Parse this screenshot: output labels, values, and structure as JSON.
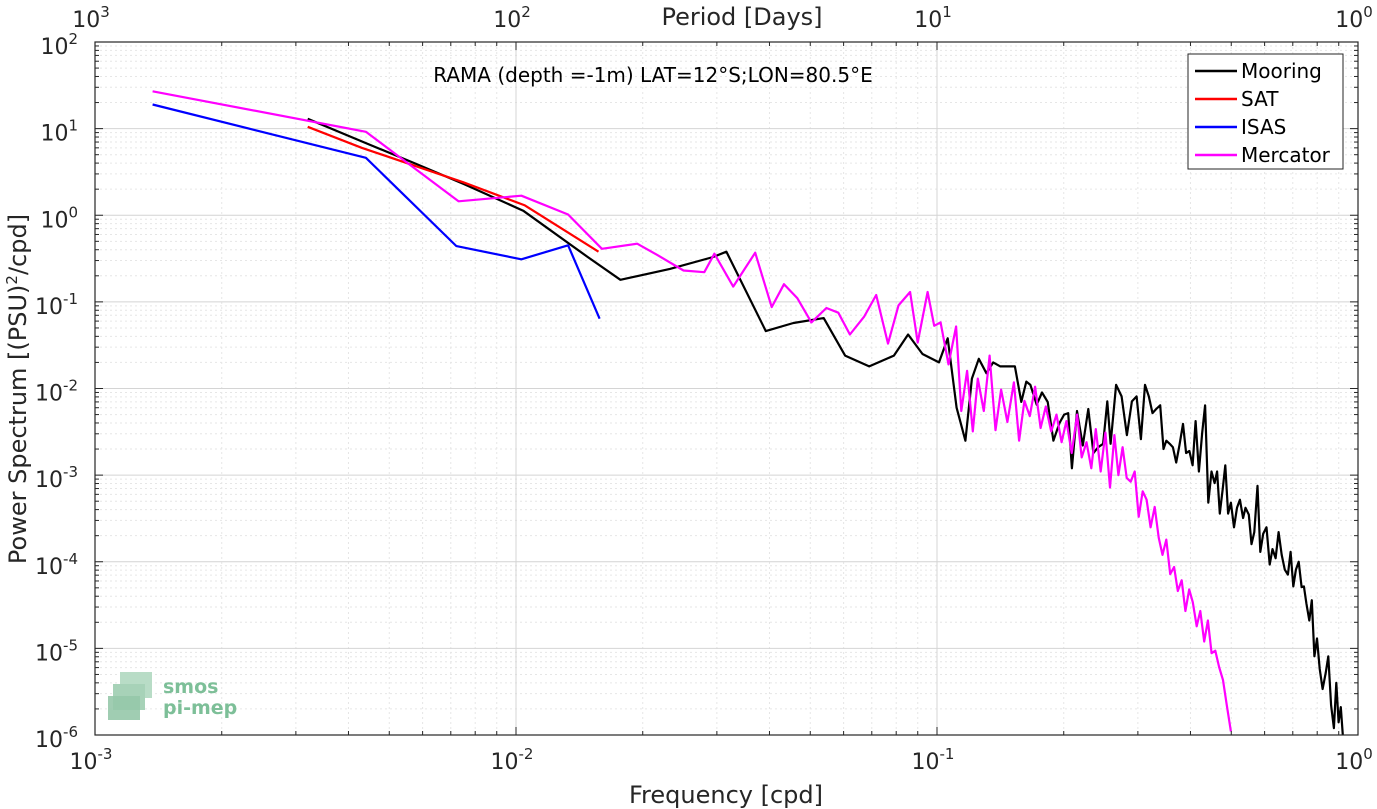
{
  "chart_data": {
    "type": "line",
    "title": "RAMA (depth =-1m) LAT=12°S;LON=80.5°E",
    "xlabel": "Frequency [cpd]",
    "ylabel": "Power Spectrum [(PSU)²/cpd]",
    "xlabel_top": "Period [Days]",
    "xscale": "log",
    "yscale": "log",
    "xlim": [
      0.001,
      1
    ],
    "ylim": [
      1e-06,
      100
    ],
    "grid": true,
    "legend_position": "top-right",
    "x_ticks": [
      {
        "value": 0.001,
        "base": "10",
        "exp": "-3"
      },
      {
        "value": 0.01,
        "base": "10",
        "exp": "-2"
      },
      {
        "value": 0.1,
        "base": "10",
        "exp": "-1"
      },
      {
        "value": 1,
        "base": "10",
        "exp": "0"
      }
    ],
    "y_ticks": [
      {
        "value": 1e-06,
        "base": "10",
        "exp": "-6"
      },
      {
        "value": 1e-05,
        "base": "10",
        "exp": "-5"
      },
      {
        "value": 0.0001,
        "base": "10",
        "exp": "-4"
      },
      {
        "value": 0.001,
        "base": "10",
        "exp": "-3"
      },
      {
        "value": 0.01,
        "base": "10",
        "exp": "-2"
      },
      {
        "value": 0.1,
        "base": "10",
        "exp": "-1"
      },
      {
        "value": 1,
        "base": "10",
        "exp": "0"
      },
      {
        "value": 10,
        "base": "10",
        "exp": "1"
      },
      {
        "value": 100,
        "base": "10",
        "exp": "2"
      }
    ],
    "top_ticks": [
      {
        "value": 0.001,
        "base": "10",
        "exp": "3"
      },
      {
        "value": 0.01,
        "base": "10",
        "exp": "2"
      },
      {
        "value": 0.1,
        "base": "10",
        "exp": "1"
      },
      {
        "value": 1,
        "base": "10",
        "exp": "0"
      }
    ],
    "series": [
      {
        "name": "Mooring",
        "color": "#000000",
        "x": [
          0.0032,
          0.0044,
          0.0058,
          0.0075,
          0.0104,
          0.0148,
          0.0177,
          0.0232,
          0.0294,
          0.0316,
          0.0392,
          0.0456,
          0.0538,
          0.0605,
          0.069,
          0.079,
          0.0854,
          0.0924,
          0.1011,
          0.106,
          0.1113,
          0.1168,
          0.121,
          0.1257,
          0.131,
          0.136,
          0.1414,
          0.147,
          0.1531,
          0.1586,
          0.163,
          0.1667,
          0.1725,
          0.1776,
          0.1832,
          0.189,
          0.1954,
          0.2004,
          0.205,
          0.2091,
          0.215,
          0.222,
          0.2287,
          0.2352,
          0.2415,
          0.2481,
          0.2538,
          0.2584,
          0.2663,
          0.2744,
          0.2826,
          0.2903,
          0.298,
          0.305,
          0.312,
          0.3185,
          0.325,
          0.3317,
          0.339,
          0.3451,
          0.3505,
          0.3571,
          0.3634,
          0.3699,
          0.3766,
          0.384,
          0.3905,
          0.3977,
          0.4047,
          0.4115,
          0.4188,
          0.4265,
          0.4334,
          0.441,
          0.4488,
          0.4564,
          0.4628,
          0.4696,
          0.477,
          0.484,
          0.4915,
          0.4989,
          0.5074,
          0.516,
          0.5243,
          0.5333,
          0.5405,
          0.5503,
          0.5585,
          0.5671,
          0.577,
          0.586,
          0.5954,
          0.6061,
          0.6169,
          0.6265,
          0.6371,
          0.6478,
          0.6589,
          0.6702,
          0.6815,
          0.6918,
          0.7021,
          0.712,
          0.7229,
          0.7344,
          0.744,
          0.7542,
          0.766,
          0.7767,
          0.7877,
          0.799,
          0.811,
          0.8241,
          0.838,
          0.8501,
          0.863,
          0.8764,
          0.8881,
          0.8995,
          0.91,
          0.92
        ],
        "y": [
          13.0,
          6.8,
          3.9,
          2.3,
          1.13,
          0.33,
          0.18,
          0.24,
          0.33,
          0.38,
          0.046,
          0.057,
          0.065,
          0.024,
          0.018,
          0.024,
          0.042,
          0.025,
          0.02,
          0.038,
          0.006,
          0.0025,
          0.013,
          0.022,
          0.015,
          0.02,
          0.018,
          0.018,
          0.018,
          0.007,
          0.012,
          0.011,
          0.0065,
          0.009,
          0.007,
          0.0025,
          0.004,
          0.005,
          0.0052,
          0.0012,
          0.0055,
          0.0022,
          0.0058,
          0.0018,
          0.0021,
          0.0023,
          0.0071,
          0.0023,
          0.011,
          0.0081,
          0.0029,
          0.0071,
          0.0081,
          0.0026,
          0.011,
          0.0081,
          0.0052,
          0.0058,
          0.0064,
          0.002,
          0.0025,
          0.0023,
          0.0021,
          0.0014,
          0.0022,
          0.0039,
          0.0018,
          0.0019,
          0.0013,
          0.0042,
          0.0011,
          0.0031,
          0.0064,
          0.00048,
          0.0011,
          0.00081,
          0.0011,
          0.00036,
          0.00069,
          0.0013,
          0.00036,
          0.00048,
          0.00025,
          0.00042,
          0.00052,
          0.00032,
          0.00042,
          0.00035,
          0.00016,
          0.00022,
          0.00075,
          0.00013,
          0.00021,
          0.00025,
          9.3e-05,
          0.00014,
          0.00011,
          0.00022,
          0.00012,
          8.1e-05,
          7.1e-05,
          0.00013,
          5.2e-05,
          8.1e-05,
          0.0001,
          5.1e-05,
          5.2e-05,
          3.3e-05,
          2.1e-05,
          3.6e-05,
          8.1e-06,
          1.3e-05,
          5.8e-06,
          3.4e-06,
          5.2e-06,
          8.1e-06,
          2.2e-06,
          1.2e-06,
          4e-06,
          1.4e-06,
          2.1e-06,
          1e-06
        ]
      },
      {
        "name": "SAT",
        "color": "#ff0000",
        "x": [
          0.0032,
          0.0043,
          0.0075,
          0.0105,
          0.0157
        ],
        "y": [
          10.5,
          6.0,
          2.4,
          1.3,
          0.38
        ]
      },
      {
        "name": "ISAS",
        "color": "#0000ff",
        "x": [
          0.00137,
          0.0044,
          0.00722,
          0.0103,
          0.0133,
          0.0158
        ],
        "y": [
          19.0,
          4.6,
          0.44,
          0.31,
          0.45,
          0.064
        ]
      },
      {
        "name": "Mercator",
        "color": "#ff00ff",
        "x": [
          0.00137,
          0.0044,
          0.0073,
          0.0103,
          0.0133,
          0.016,
          0.0194,
          0.0216,
          0.025,
          0.028,
          0.0296,
          0.0328,
          0.037,
          0.0405,
          0.0433,
          0.0466,
          0.0503,
          0.0546,
          0.0583,
          0.0621,
          0.0672,
          0.0717,
          0.0765,
          0.081,
          0.0863,
          0.09,
          0.095,
          0.0985,
          0.102,
          0.1065,
          0.111,
          0.1142,
          0.1179,
          0.1216,
          0.125,
          0.1292,
          0.1333,
          0.1377,
          0.142,
          0.147,
          0.1523,
          0.1567,
          0.1613,
          0.1661,
          0.171,
          0.1762,
          0.1813,
          0.1867,
          0.1922,
          0.1977,
          0.2029,
          0.2089,
          0.2152,
          0.2206,
          0.2265,
          0.2326,
          0.2384,
          0.2448,
          0.2512,
          0.2576,
          0.2638,
          0.2697,
          0.276,
          0.2822,
          0.2885,
          0.2949,
          0.3013,
          0.308,
          0.3147,
          0.3217,
          0.329,
          0.3362,
          0.3432,
          0.3505,
          0.3581,
          0.3658,
          0.3733,
          0.3812,
          0.3891,
          0.3972,
          0.4052,
          0.4138,
          0.4222,
          0.4311,
          0.4399,
          0.4489,
          0.4582,
          0.4678,
          0.4778,
          0.488,
          0.499
        ],
        "y": [
          27.0,
          9.2,
          1.45,
          1.68,
          1.02,
          0.41,
          0.47,
          0.35,
          0.23,
          0.22,
          0.36,
          0.15,
          0.37,
          0.087,
          0.16,
          0.11,
          0.058,
          0.085,
          0.075,
          0.042,
          0.068,
          0.12,
          0.033,
          0.091,
          0.13,
          0.034,
          0.13,
          0.053,
          0.058,
          0.019,
          0.052,
          0.0055,
          0.016,
          0.0032,
          0.013,
          0.0055,
          0.024,
          0.0033,
          0.0097,
          0.0041,
          0.0118,
          0.0025,
          0.0072,
          0.0048,
          0.0105,
          0.0035,
          0.0062,
          0.0032,
          0.005,
          0.0024,
          0.0042,
          0.0018,
          0.005,
          0.0016,
          0.0024,
          0.0012,
          0.0034,
          0.0011,
          0.0031,
          0.00072,
          0.0029,
          0.001,
          0.0021,
          0.00093,
          0.00084,
          0.0011,
          0.00033,
          0.00065,
          0.00052,
          0.00025,
          0.00043,
          0.00019,
          0.00012,
          0.00018,
          7.2e-05,
          8.7e-05,
          4.6e-05,
          6.1e-05,
          2.7e-05,
          4.8e-05,
          3.4e-05,
          1.8e-05,
          2.7e-05,
          1.2e-05,
          2.1e-05,
          8.8e-06,
          9.4e-06,
          6.1e-06,
          4.3e-06,
          2.2e-06,
          1.1e-06
        ]
      }
    ]
  },
  "watermark": {
    "line1": "smos",
    "line2": "pi-mep"
  }
}
